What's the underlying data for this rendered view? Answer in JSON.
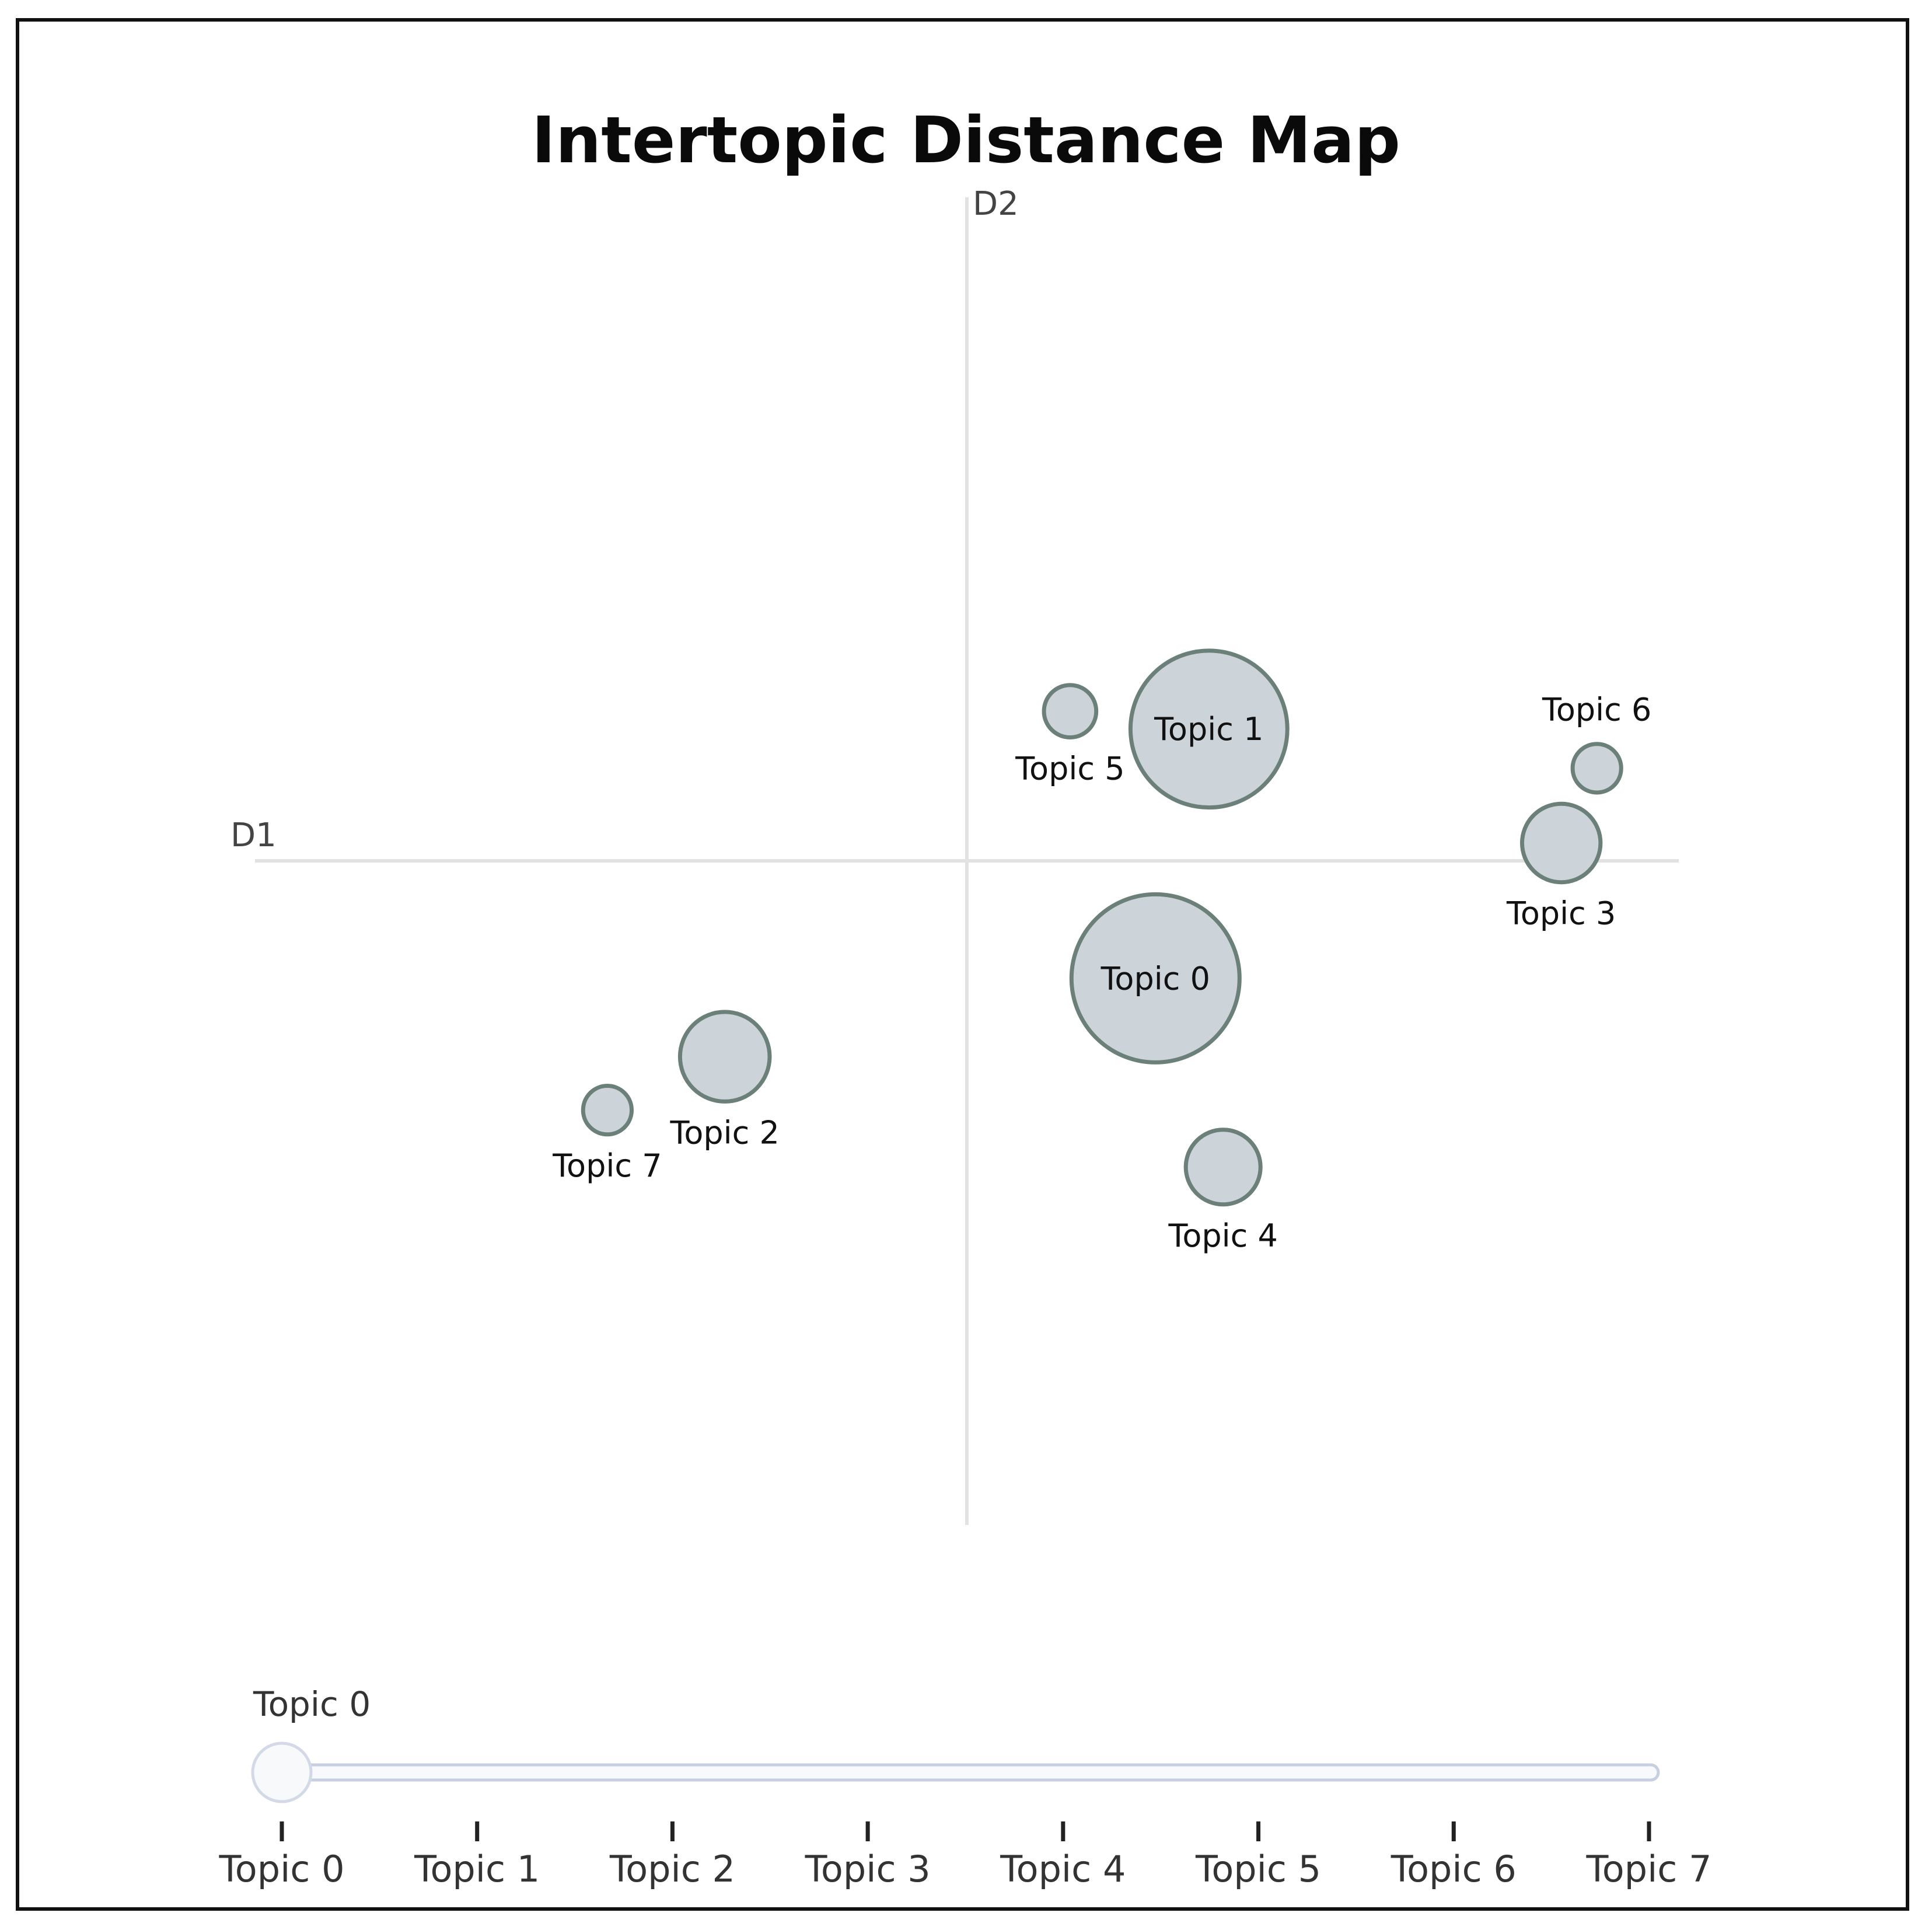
{
  "chart_data": {
    "type": "scatter",
    "title": "Intertopic Distance Map",
    "xlabel": "D1",
    "ylabel": "D2",
    "xlim": [
      -10,
      10
    ],
    "ylim": [
      -9.3,
      9.3
    ],
    "grid": false,
    "points": [
      {
        "label": "Topic 0",
        "x": 2.65,
        "y": -1.65,
        "size": 2.25,
        "label_position": "center"
      },
      {
        "label": "Topic 1",
        "x": 3.4,
        "y": 1.85,
        "size": 2.1,
        "label_position": "center"
      },
      {
        "label": "Topic 2",
        "x": -3.4,
        "y": -2.75,
        "size": 1.2,
        "label_position": "below"
      },
      {
        "label": "Topic 3",
        "x": 8.35,
        "y": 0.25,
        "size": 1.05,
        "label_position": "below"
      },
      {
        "label": "Topic 4",
        "x": 3.6,
        "y": -4.3,
        "size": 1.0,
        "label_position": "below"
      },
      {
        "label": "Topic 5",
        "x": 1.45,
        "y": 2.1,
        "size": 0.7,
        "label_position": "below-left"
      },
      {
        "label": "Topic 6",
        "x": 8.85,
        "y": 1.3,
        "size": 0.65,
        "label_position": "above"
      },
      {
        "label": "Topic 7",
        "x": -5.05,
        "y": -3.5,
        "size": 0.65,
        "label_position": "below"
      }
    ]
  },
  "slider": {
    "current_label": "Topic 0",
    "selected_index": 0,
    "ticks": [
      "Topic 0",
      "Topic 1",
      "Topic 2",
      "Topic 3",
      "Topic 4",
      "Topic 5",
      "Topic 6",
      "Topic 7"
    ]
  },
  "colors": {
    "bubble_fill": "#cdd4d9",
    "bubble_stroke": "#6b8079",
    "axis": "#e2e2e2"
  }
}
